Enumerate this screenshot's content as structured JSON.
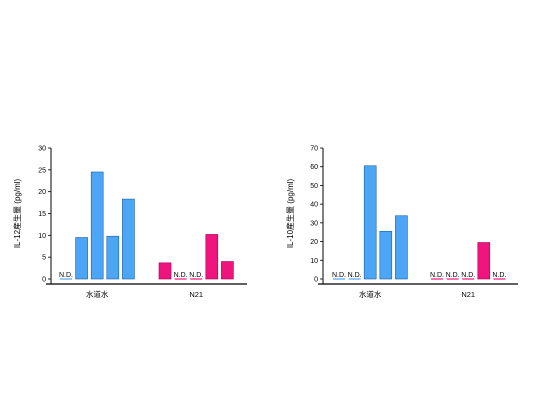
{
  "chart_data": [
    {
      "type": "bar",
      "ylabel": "IL-12産生量 (pg/ml)",
      "ylim": [
        0,
        30
      ],
      "yticks": [
        0,
        5,
        10,
        15,
        20,
        25,
        30
      ],
      "groups": [
        {
          "label": "水道水",
          "color": "#4da6f5",
          "values": [
            0,
            9.5,
            24.5,
            9.8,
            18.3
          ],
          "not_detected": [
            true,
            false,
            false,
            false,
            false
          ]
        },
        {
          "label": "N21",
          "color": "#f0147e",
          "values": [
            3.7,
            0,
            0,
            10.2,
            4.0
          ],
          "not_detected": [
            false,
            true,
            true,
            false,
            false
          ]
        }
      ],
      "nd_label": "N.D."
    },
    {
      "type": "bar",
      "ylabel": "IL-10産生量 (pg/ml)",
      "ylim": [
        0,
        70
      ],
      "yticks": [
        0,
        10,
        20,
        30,
        40,
        50,
        60,
        70
      ],
      "groups": [
        {
          "label": "水道水",
          "color": "#4da6f5",
          "values": [
            0,
            0,
            60.5,
            25.5,
            33.8
          ],
          "not_detected": [
            true,
            true,
            false,
            false,
            false
          ]
        },
        {
          "label": "N21",
          "color": "#f0147e",
          "values": [
            0,
            0,
            0,
            19.5,
            0
          ],
          "not_detected": [
            true,
            true,
            true,
            false,
            true
          ]
        }
      ],
      "nd_label": "N.D."
    }
  ]
}
